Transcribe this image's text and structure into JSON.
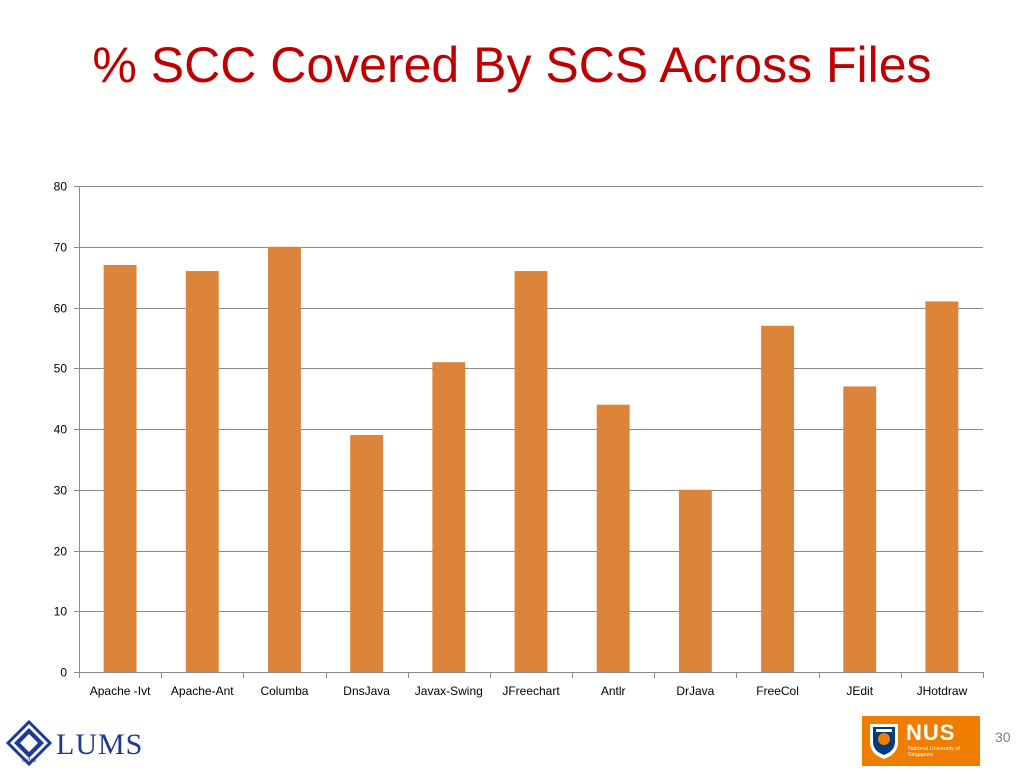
{
  "slide": {
    "title": "% SCC Covered By SCS Across Files",
    "page_number": "30"
  },
  "logos": {
    "lums": {
      "text": "LUMS",
      "emblem_text": "LUMS",
      "icon": "lums-emblem-icon",
      "color": "#1f3a93"
    },
    "nus": {
      "text": "NUS",
      "subtext": "National University of Singapore",
      "icon": "nus-crest-icon",
      "background": "#ef7d00"
    }
  },
  "chart_data": {
    "type": "bar",
    "title": "",
    "xlabel": "",
    "ylabel": "",
    "categories": [
      "Apache -Ivt",
      "Apache-Ant",
      "Columba",
      "DnsJava",
      "Javax-Swing",
      "JFreechart",
      "Antlr",
      "DrJava",
      "FreeCol",
      "JEdit",
      "JHotdraw"
    ],
    "values": [
      67,
      66,
      70,
      39,
      51,
      66,
      44,
      30,
      57,
      47,
      61
    ],
    "ylim": [
      0,
      80
    ],
    "yticks": [
      0,
      10,
      20,
      30,
      40,
      50,
      60,
      70,
      80
    ],
    "grid": true,
    "legend": "none",
    "bar_color": "#dd843b",
    "grid_color": "#8c8c8c"
  }
}
